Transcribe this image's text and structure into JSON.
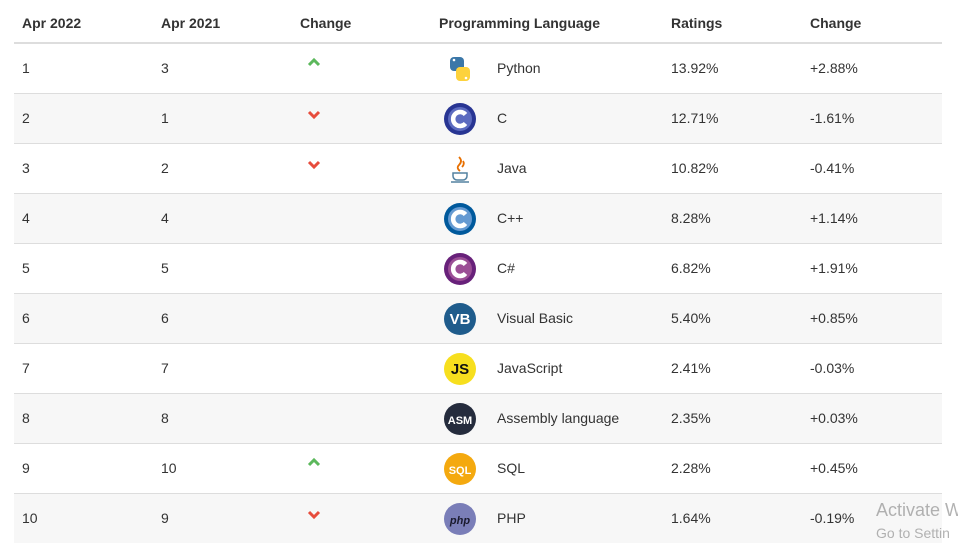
{
  "table": {
    "columns": [
      "Apr 2022",
      "Apr 2021",
      "Change",
      "Programming Language",
      "Ratings",
      "Change"
    ],
    "rows": [
      {
        "rank_2022": "1",
        "rank_2021": "3",
        "trend": "up",
        "icon": "python",
        "language": "Python",
        "rating": "13.92%",
        "change": "+2.88%"
      },
      {
        "rank_2022": "2",
        "rank_2021": "1",
        "trend": "down",
        "icon": "c",
        "language": "C",
        "rating": "12.71%",
        "change": "-1.61%"
      },
      {
        "rank_2022": "3",
        "rank_2021": "2",
        "trend": "down",
        "icon": "java",
        "language": "Java",
        "rating": "10.82%",
        "change": "-0.41%"
      },
      {
        "rank_2022": "4",
        "rank_2021": "4",
        "icon": "cpp",
        "language": "C++",
        "rating": "8.28%",
        "change": "+1.14%"
      },
      {
        "rank_2022": "5",
        "rank_2021": "5",
        "icon": "csharp",
        "language": "C#",
        "rating": "6.82%",
        "change": "+1.91%"
      },
      {
        "rank_2022": "6",
        "rank_2021": "6",
        "icon": "badge",
        "icon_color": "#1f5c8c",
        "icon_text_color": "#ffffff",
        "icon_text": "VB",
        "language": "Visual Basic",
        "rating": "5.40%",
        "change": "+0.85%"
      },
      {
        "rank_2022": "7",
        "rank_2021": "7",
        "icon": "badge",
        "icon_color": "#f7df1e",
        "icon_text_color": "#111111",
        "icon_text": "JS",
        "language": "JavaScript",
        "rating": "2.41%",
        "change": "-0.03%"
      },
      {
        "rank_2022": "8",
        "rank_2021": "8",
        "icon": "badge",
        "icon_color": "#252c3d",
        "icon_text_color": "#ffffff",
        "icon_text": "ASM",
        "language": "Assembly language",
        "rating": "2.35%",
        "change": "+0.03%"
      },
      {
        "rank_2022": "9",
        "rank_2021": "10",
        "trend": "up",
        "icon": "badge",
        "icon_color": "#f4a90f",
        "icon_text_color": "#ffffff",
        "icon_text": "SQL",
        "language": "SQL",
        "rating": "2.28%",
        "change": "+0.45%"
      },
      {
        "rank_2022": "10",
        "rank_2021": "9",
        "trend": "down",
        "icon": "badge",
        "icon_color": "#7a7eb8",
        "icon_text_color": "#1a1a2e",
        "icon_text": "php",
        "language": "PHP",
        "rating": "1.64%",
        "change": "-0.19%"
      }
    ]
  },
  "watermark": {
    "line1": "Activate W",
    "line2": "Go to Settin"
  }
}
